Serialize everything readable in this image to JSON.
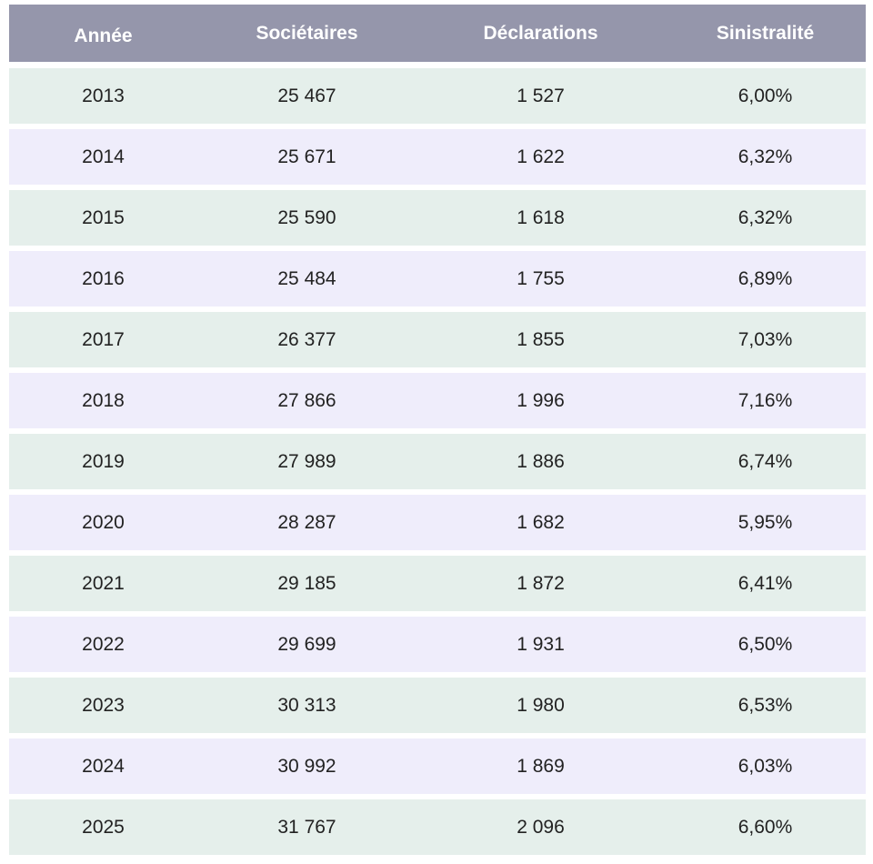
{
  "table": {
    "headers": [
      "Année",
      "Sociétaires",
      "Déclarations",
      "Sinistralité"
    ],
    "rows": [
      [
        "2013",
        "25 467",
        "1 527",
        "6,00%"
      ],
      [
        "2014",
        "25 671",
        "1 622",
        "6,32%"
      ],
      [
        "2015",
        "25 590",
        "1 618",
        "6,32%"
      ],
      [
        "2016",
        "25 484",
        "1 755",
        "6,89%"
      ],
      [
        "2017",
        "26 377",
        "1 855",
        "7,03%"
      ],
      [
        "2018",
        "27 866",
        "1 996",
        "7,16%"
      ],
      [
        "2019",
        "27 989",
        "1 886",
        "6,74%"
      ],
      [
        "2020",
        "28 287",
        "1 682",
        "5,95%"
      ],
      [
        "2021",
        "29 185",
        "1 872",
        "6,41%"
      ],
      [
        "2022",
        "29 699",
        "1 931",
        "6,50%"
      ],
      [
        "2023",
        "30 313",
        "1 980",
        "6,53%"
      ],
      [
        "2024",
        "30 992",
        "1 869",
        "6,03%"
      ],
      [
        "2025",
        "31 767",
        "2 096",
        "6,60%"
      ]
    ]
  },
  "colors": {
    "header_bg": "#9596ab",
    "row_green": "#e5efeb",
    "row_lilac": "#efedfb"
  }
}
